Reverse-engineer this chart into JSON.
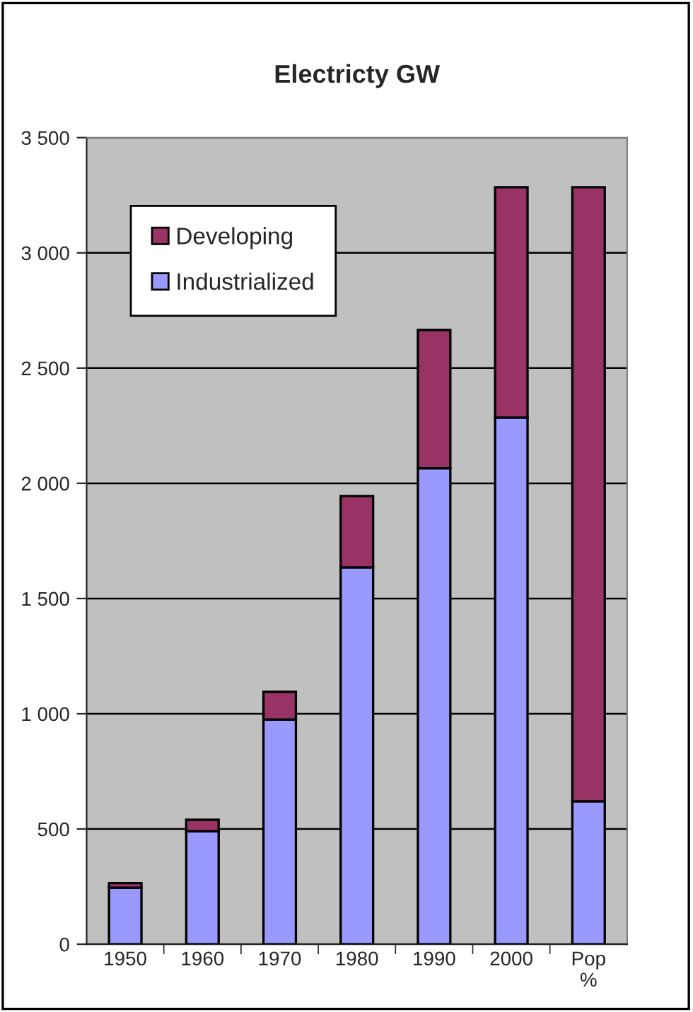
{
  "chart_data": {
    "type": "bar",
    "title": "Electricty GW",
    "categories": [
      "1950",
      "1960",
      "1970",
      "1980",
      "1990",
      "2000",
      "Pop\n%"
    ],
    "stacked": true,
    "series": [
      {
        "name": "Industrialized",
        "color": "#9999ff",
        "values": [
          245,
          490,
          975,
          1635,
          2065,
          2285,
          620
        ]
      },
      {
        "name": "Developing",
        "color": "#993366",
        "values": [
          20,
          50,
          120,
          310,
          600,
          1000,
          2665
        ]
      }
    ],
    "ylim": [
      0,
      3500
    ],
    "yticks": [
      0,
      500,
      {
        "value": 1000,
        "label": "1 000"
      },
      {
        "value": 1500,
        "label": "1 500"
      },
      {
        "value": 2000,
        "label": "2 000"
      },
      {
        "value": 2500,
        "label": "2 500"
      },
      {
        "value": 3000,
        "label": "3 000"
      },
      {
        "value": 3500,
        "label": "3 500"
      }
    ],
    "grid": "y",
    "legend": "top left"
  }
}
